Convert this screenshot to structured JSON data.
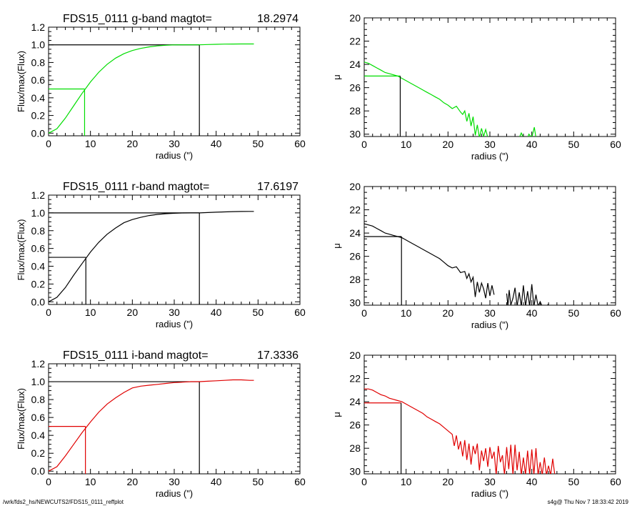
{
  "footer": {
    "left": "/wrk/fds2_hs/NEWCUTS2/FDS15_0111_reffplot",
    "right": "s4g@  Thu Nov  7 18:33:42 2019"
  },
  "chart_data": [
    {
      "type": "line",
      "band": "g",
      "color": "#00dd00",
      "title": {
        "name": "FDS15_0111 g-band  magtot=",
        "value": "18.2974"
      },
      "xlabel": "radius (\")",
      "ylabel": "Flux/max(Flux)",
      "xlim": [
        0,
        60
      ],
      "ylim": [
        -0.03,
        1.2
      ],
      "xticks": [
        "0",
        "10",
        "20",
        "30",
        "40",
        "50",
        "60"
      ],
      "yticks": [
        "0.0",
        "0.2",
        "0.4",
        "0.6",
        "0.8",
        "1.0",
        "1.2"
      ],
      "x": [
        0,
        2,
        4,
        6,
        8,
        10,
        12,
        14,
        16,
        18,
        20,
        22,
        24,
        26,
        28,
        30,
        32,
        34,
        36,
        38,
        40,
        42,
        44,
        46,
        48,
        49
      ],
      "y": [
        0,
        0.05,
        0.17,
        0.31,
        0.45,
        0.58,
        0.69,
        0.78,
        0.85,
        0.9,
        0.935,
        0.96,
        0.977,
        0.988,
        0.995,
        0.999,
        1.0,
        1.0,
        1.0,
        1.003,
        1.006,
        1.008,
        1.009,
        1.01,
        1.01,
        1.01
      ],
      "r_half": 8.6,
      "r_total": 36.0
    },
    {
      "type": "line",
      "band": "g",
      "color": "#00dd00",
      "title": null,
      "xlabel": "radius (\")",
      "ylabel": "μ",
      "xlim": [
        0,
        60
      ],
      "ylim": [
        30.2,
        20
      ],
      "reversed_y": true,
      "xticks": [
        "0",
        "10",
        "20",
        "30",
        "40",
        "50",
        "60"
      ],
      "yticks": [
        "20",
        "22",
        "24",
        "26",
        "28",
        "30"
      ],
      "x": [
        0,
        1,
        2,
        3,
        4,
        5,
        6,
        7,
        8,
        9,
        10,
        11,
        12,
        13,
        14,
        15,
        16,
        17,
        18,
        19,
        20,
        21,
        22,
        23,
        23.5,
        24,
        24.5,
        25,
        25.5,
        26,
        26.5,
        27,
        27.5,
        28,
        28.5,
        29,
        29.5,
        30
      ],
      "y": [
        23.8,
        23.9,
        24.1,
        24.3,
        24.5,
        24.7,
        24.8,
        24.9,
        25.0,
        25.2,
        25.4,
        25.6,
        25.8,
        26.0,
        26.2,
        26.4,
        26.6,
        26.8,
        27.0,
        27.3,
        27.5,
        27.8,
        27.6,
        28.1,
        28.3,
        28.0,
        28.9,
        28.2,
        29.3,
        28.5,
        30.1,
        29.2,
        30.3,
        29.5,
        30.2,
        29.6,
        30.3,
        30.3
      ],
      "x2": [
        37,
        37.5,
        38,
        39,
        39.3,
        40,
        40.2,
        40.6,
        41
      ],
      "y2": [
        30.3,
        29.9,
        30.3,
        30.3,
        30.0,
        30.3,
        30.0,
        29.4,
        30.3
      ],
      "r_half": 8.6,
      "mu_half": 25.0
    },
    {
      "type": "line",
      "band": "r",
      "color": "#000000",
      "title": {
        "name": "FDS15_0111 r-band  magtot=",
        "value": "17.6197"
      },
      "xlabel": "radius (\")",
      "ylabel": "Flux/max(Flux)",
      "xlim": [
        0,
        60
      ],
      "ylim": [
        -0.03,
        1.2
      ],
      "xticks": [
        "0",
        "10",
        "20",
        "30",
        "40",
        "50",
        "60"
      ],
      "yticks": [
        "0.0",
        "0.2",
        "0.4",
        "0.6",
        "0.8",
        "1.0",
        "1.2"
      ],
      "x": [
        0,
        2,
        4,
        6,
        8,
        10,
        12,
        14,
        16,
        18,
        20,
        22,
        24,
        26,
        28,
        30,
        32,
        34,
        36,
        38,
        40,
        42,
        44,
        46,
        48,
        49
      ],
      "y": [
        0,
        0.05,
        0.16,
        0.3,
        0.43,
        0.56,
        0.67,
        0.76,
        0.83,
        0.89,
        0.925,
        0.95,
        0.97,
        0.983,
        0.991,
        0.996,
        0.999,
        1.0,
        1.0,
        1.004,
        1.008,
        1.011,
        1.014,
        1.016,
        1.017,
        1.017
      ],
      "r_half": 8.9,
      "r_total": 36.0
    },
    {
      "type": "line",
      "band": "r",
      "color": "#000000",
      "title": null,
      "xlabel": "radius (\")",
      "ylabel": "μ",
      "xlim": [
        0,
        60
      ],
      "ylim": [
        30.2,
        20
      ],
      "reversed_y": true,
      "xticks": [
        "0",
        "10",
        "20",
        "30",
        "40",
        "50",
        "60"
      ],
      "yticks": [
        "20",
        "22",
        "24",
        "26",
        "28",
        "30"
      ],
      "x": [
        0,
        1,
        2,
        3,
        4,
        5,
        6,
        7,
        8,
        9,
        10,
        11,
        12,
        13,
        14,
        15,
        16,
        17,
        18,
        19,
        20,
        21,
        22,
        23,
        24,
        24.5,
        25,
        25.5,
        26,
        26.5,
        27,
        27.5,
        28,
        28.5,
        29,
        29.5,
        30,
        30.5,
        31
      ],
      "y": [
        23.2,
        23.3,
        23.4,
        23.6,
        23.8,
        24.0,
        24.1,
        24.2,
        24.3,
        24.4,
        24.6,
        24.8,
        25.0,
        25.2,
        25.4,
        25.6,
        25.8,
        26.0,
        26.2,
        26.5,
        26.8,
        27.0,
        26.9,
        27.4,
        27.3,
        27.9,
        27.5,
        28.2,
        27.8,
        29.5,
        28.2,
        29.1,
        28.3,
        28.8,
        29.6,
        28.3,
        29.4,
        28.5,
        29.3
      ],
      "x2": [
        34,
        34.3,
        34.6,
        35,
        35.5,
        36,
        36.5,
        37,
        37.5,
        38,
        38.5,
        39,
        39.5,
        40,
        40.5,
        41,
        41.5,
        42,
        42.5,
        43,
        43.5,
        44
      ],
      "y2": [
        29.2,
        30.3,
        28.9,
        30.2,
        29.6,
        28.7,
        30.3,
        29.1,
        30.3,
        28.5,
        30.3,
        29.0,
        30.3,
        28.4,
        30.3,
        29.3,
        30.3,
        29.9,
        30.3,
        30.3,
        30.3,
        30.1
      ],
      "r_half": 8.9,
      "mu_half": 24.3
    },
    {
      "type": "line",
      "band": "i",
      "color": "#e00000",
      "title": {
        "name": "FDS15_0111 i-band  magtot=",
        "value": "17.3336"
      },
      "xlabel": "radius (\")",
      "ylabel": "Flux/max(Flux)",
      "xlim": [
        0,
        60
      ],
      "ylim": [
        -0.03,
        1.2
      ],
      "xticks": [
        "0",
        "10",
        "20",
        "30",
        "40",
        "50",
        "60"
      ],
      "yticks": [
        "0.0",
        "0.2",
        "0.4",
        "0.6",
        "0.8",
        "1.0",
        "1.2"
      ],
      "x": [
        0,
        2,
        4,
        6,
        8,
        10,
        12,
        14,
        16,
        18,
        20,
        22,
        24,
        26,
        28,
        30,
        32,
        34,
        36,
        38,
        40,
        42,
        44,
        46,
        48,
        49
      ],
      "y": [
        0,
        0.05,
        0.17,
        0.3,
        0.43,
        0.55,
        0.66,
        0.75,
        0.82,
        0.88,
        0.93,
        0.95,
        0.96,
        0.97,
        0.98,
        0.99,
        0.995,
        1.0,
        1.0,
        1.005,
        1.01,
        1.015,
        1.02,
        1.02,
        1.015,
        1.015
      ],
      "r_half": 8.8,
      "r_total": 36.0
    },
    {
      "type": "line",
      "band": "i",
      "color": "#e00000",
      "title": null,
      "xlabel": "radius (\")",
      "ylabel": "μ",
      "xlim": [
        0,
        60
      ],
      "ylim": [
        30.2,
        20
      ],
      "reversed_y": true,
      "xticks": [
        "0",
        "10",
        "20",
        "30",
        "40",
        "50",
        "60"
      ],
      "yticks": [
        "20",
        "22",
        "24",
        "26",
        "28",
        "30"
      ],
      "x": [
        0,
        1,
        2,
        3,
        4,
        5,
        6,
        7,
        8,
        9,
        10,
        11,
        12,
        13,
        14,
        15,
        16,
        17,
        18,
        19,
        20,
        21,
        21.5,
        22,
        22.5,
        23,
        23.5,
        24,
        24.5,
        25,
        25.5,
        26,
        26.5,
        27,
        27.5,
        28,
        28.5,
        29,
        29.5,
        30,
        30.5,
        31,
        31.5,
        32,
        32.5,
        33,
        33.5,
        34,
        34.5,
        35,
        35.5,
        36,
        36.5,
        37,
        37.5,
        38,
        38.5,
        39,
        39.5,
        40,
        40.5,
        41,
        41.5,
        42,
        42.5,
        43,
        43.5,
        44,
        44.5,
        45,
        45.5,
        46,
        47
      ],
      "y": [
        22.9,
        22.9,
        23.0,
        23.2,
        23.4,
        23.5,
        23.7,
        23.8,
        23.9,
        24.0,
        24.2,
        24.4,
        24.6,
        24.8,
        25.0,
        25.3,
        25.5,
        25.7,
        25.9,
        26.2,
        26.5,
        26.8,
        27.8,
        26.9,
        28.1,
        27.4,
        28.7,
        27.3,
        29.0,
        27.6,
        29.4,
        27.8,
        28.5,
        27.6,
        29.9,
        28.2,
        29.1,
        28.0,
        29.6,
        27.9,
        28.9,
        28.3,
        30.3,
        27.8,
        29.2,
        28.6,
        30.3,
        27.9,
        29.8,
        27.7,
        30.3,
        27.7,
        29.9,
        28.3,
        30.3,
        28.8,
        30.3,
        28.2,
        30.3,
        28.1,
        30.3,
        28.0,
        30.3,
        29.2,
        30.3,
        28.8,
        30.3,
        29.5,
        30.3,
        28.9,
        30.3,
        30.3,
        30.3
      ],
      "r_half": 8.8,
      "mu_half": 24.1
    }
  ]
}
